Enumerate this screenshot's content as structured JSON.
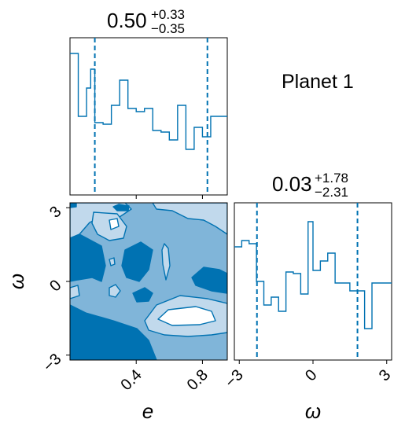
{
  "planet_label": "Planet 1",
  "colors": {
    "line": "#0072b2",
    "fill_light": "#c1d9ec",
    "fill_mid": "#80b5d9",
    "fill_dark": "#0072b2",
    "fill_white": "#ffffff"
  },
  "chart_data": [
    {
      "type": "histogram",
      "panel": "marginal-e",
      "title": {
        "median": "0.50",
        "plus": "+0.33",
        "minus": "−0.35"
      },
      "x_range": [
        0.0,
        0.95
      ],
      "quantile_lines": [
        0.15,
        0.83
      ],
      "bin_edges": [
        0.0,
        0.05,
        0.1,
        0.125,
        0.15,
        0.2,
        0.25,
        0.3,
        0.35,
        0.4,
        0.45,
        0.5,
        0.55,
        0.6,
        0.65,
        0.7,
        0.75,
        0.8,
        0.85,
        0.9,
        0.95
      ],
      "values": [
        0.9,
        0.5,
        0.68,
        0.8,
        0.46,
        0.45,
        0.57,
        0.73,
        0.55,
        0.53,
        0.55,
        0.41,
        0.4,
        0.35,
        0.57,
        0.29,
        0.43,
        0.37,
        0.5,
        0.5
      ],
      "ylim": [
        0,
        1.0
      ],
      "tick_labels": []
    },
    {
      "type": "histogram",
      "panel": "marginal-omega",
      "title": {
        "median": "0.03",
        "plus": "+1.78",
        "minus": "−2.31"
      },
      "x_range": [
        -3.2,
        3.2
      ],
      "quantile_lines": [
        -2.28,
        1.81
      ],
      "bin_edges": [
        -3.2,
        -2.9,
        -2.6,
        -2.3,
        -2.0,
        -1.7,
        -1.4,
        -1.1,
        -0.8,
        -0.5,
        -0.2,
        0.0,
        0.3,
        0.6,
        0.9,
        1.2,
        1.5,
        1.8,
        2.1,
        2.4,
        2.7,
        3.2
      ],
      "values": [
        0.72,
        0.76,
        0.74,
        0.5,
        0.35,
        0.4,
        0.31,
        0.56,
        0.55,
        0.42,
        0.88,
        0.57,
        0.63,
        0.68,
        0.49,
        0.49,
        0.44,
        0.44,
        0.2,
        0.49,
        0.49
      ],
      "ylim": [
        0,
        1.0
      ],
      "xlabel": "ω",
      "tick_labels": [
        "−3",
        "0",
        "3"
      ],
      "tick_values": [
        -3,
        0,
        3
      ]
    },
    {
      "type": "contour",
      "panel": "joint-e-omega",
      "x_range": [
        0.0,
        0.95
      ],
      "y_range": [
        -3.2,
        3.2
      ],
      "xlabel": "e",
      "ylabel": "ω",
      "x_tick_labels": [
        "0.4",
        "0.8"
      ],
      "x_tick_values": [
        0.4,
        0.8
      ],
      "y_tick_labels": [
        "−3",
        "0",
        "3"
      ],
      "y_tick_values": [
        -3,
        0,
        3
      ],
      "levels": [
        "light",
        "mid",
        "dark"
      ]
    }
  ]
}
